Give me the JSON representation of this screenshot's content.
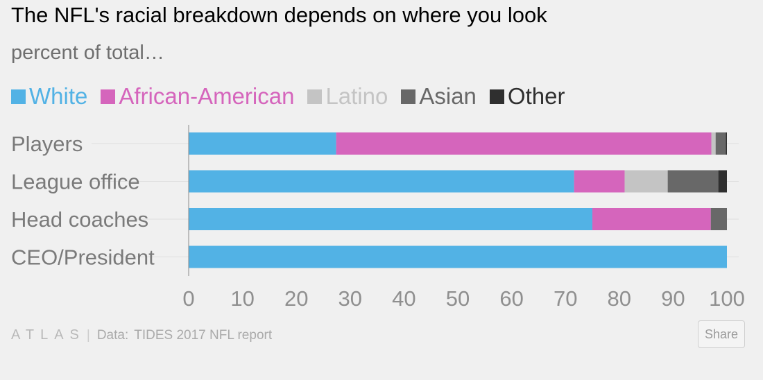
{
  "header": {
    "title": "The NFL's racial breakdown depends on where you look",
    "subtitle": "percent of total…"
  },
  "colors": {
    "White": "#52b2e5",
    "African-American": "#d565bc",
    "Latino": "#c4c4c4",
    "Asian": "#686868",
    "Other": "#2f2f2f"
  },
  "chart_data": {
    "type": "bar",
    "orientation": "horizontal",
    "stacked": true,
    "categories": [
      "Players",
      "League office",
      "Head coaches",
      "CEO/President"
    ],
    "series": [
      {
        "name": "White",
        "values": [
          27.4,
          71.6,
          75,
          100
        ]
      },
      {
        "name": "African-American",
        "values": [
          69.7,
          9.4,
          22,
          0
        ]
      },
      {
        "name": "Latino",
        "values": [
          0.8,
          8,
          0,
          0
        ]
      },
      {
        "name": "Asian",
        "values": [
          1.9,
          9.4,
          3,
          0
        ]
      },
      {
        "name": "Other",
        "values": [
          0.2,
          1.6,
          0,
          0
        ]
      }
    ],
    "xlim": [
      0,
      100
    ],
    "xticks": [
      "0",
      "10",
      "20",
      "30",
      "40",
      "50",
      "60",
      "70",
      "80",
      "90",
      "100"
    ],
    "legend_position": "top-left",
    "grid": true
  },
  "footer": {
    "logo": "ATLAS",
    "separator": "|",
    "source_prefix": "Data:",
    "source": "TIDES 2017 NFL report",
    "share_label": "Share"
  }
}
